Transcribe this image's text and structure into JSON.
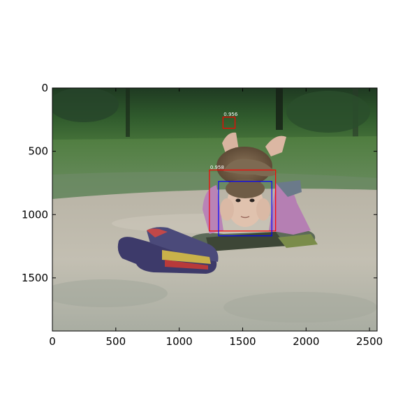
{
  "axes": {
    "xlim": [
      0,
      2560
    ],
    "ylim": [
      1920,
      0
    ],
    "x_ticks": [
      {
        "value": 0,
        "label": "0"
      },
      {
        "value": 500,
        "label": "500"
      },
      {
        "value": 1000,
        "label": "1000"
      },
      {
        "value": 1500,
        "label": "1500"
      },
      {
        "value": 2000,
        "label": "2000"
      },
      {
        "value": 2500,
        "label": "2500"
      }
    ],
    "y_ticks": [
      {
        "value": 0,
        "label": "0"
      },
      {
        "value": 500,
        "label": "500"
      },
      {
        "value": 1000,
        "label": "1000"
      },
      {
        "value": 1500,
        "label": "1500"
      }
    ]
  },
  "detections": [
    {
      "label": "0.956",
      "x1": 1345,
      "y1": 230,
      "x2": 1440,
      "y2": 318,
      "color": "#ff0000"
    },
    {
      "label": "0.958",
      "x1": 1238,
      "y1": 648,
      "x2": 1760,
      "y2": 1130,
      "color": "#ff0000"
    },
    {
      "label": "",
      "x1": 1310,
      "y1": 738,
      "x2": 1730,
      "y2": 1168,
      "color": "#0000ff"
    }
  ]
}
